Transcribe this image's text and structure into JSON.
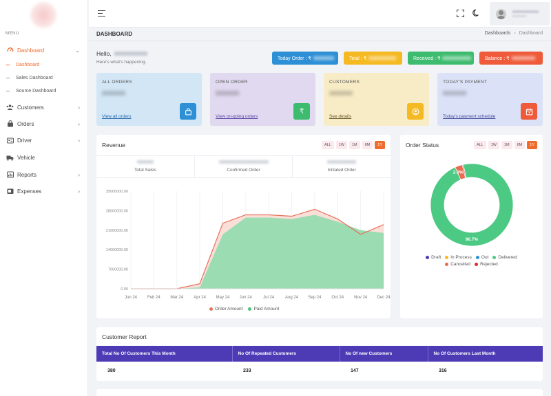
{
  "sidebar": {
    "menu_label": "MENU",
    "items": [
      {
        "label": "Dashboard",
        "icon": "gauge-icon"
      },
      {
        "label": "Customers",
        "icon": "users-icon"
      },
      {
        "label": "Orders",
        "icon": "bag-icon"
      },
      {
        "label": "Driver",
        "icon": "id-card-icon"
      },
      {
        "label": "Vehicle",
        "icon": "truck-icon"
      },
      {
        "label": "Reports",
        "icon": "reports-icon"
      },
      {
        "label": "Expenses",
        "icon": "wallet-icon"
      }
    ],
    "sub_items": [
      "Dashboard",
      "Sales Dashboard",
      "Source Dashboard"
    ]
  },
  "header": {
    "page_title": "DASHBOARD",
    "breadcrumb": [
      "Dashboards",
      "Dashboard"
    ]
  },
  "greeting": {
    "hello": "Hello,",
    "sub": "Here's what's happening."
  },
  "pills": [
    {
      "label": "Today Order : ₹",
      "color": "#2d8fd5"
    },
    {
      "label": "Total : ₹",
      "color": "#f5b922"
    },
    {
      "label": "Received : ₹",
      "color": "#3dbb6e"
    },
    {
      "label": "Balance : ₹",
      "color": "#ef5a3a"
    }
  ],
  "stats": [
    {
      "label": "ALL ORDERS",
      "link": "View all orders",
      "bg": "#d3e6f5",
      "icon_bg": "#2d8fd5",
      "link_color": "#2a6db0",
      "icon": "bag-icon"
    },
    {
      "label": "OPEN ORDER",
      "link": "View on-going orders",
      "bg": "#e0d9ef",
      "icon_bg": "#3dbb6e",
      "link_color": "#5a4aa8",
      "icon": "rupee-icon"
    },
    {
      "label": "CUSTOMERS",
      "link": "See details",
      "bg": "#f8ecc7",
      "icon_bg": "#f5b922",
      "link_color": "#6a5a2a",
      "icon": "user-circle-icon"
    },
    {
      "label": "TODAY'S PAYMENT",
      "link": "Today's payment schedule",
      "bg": "#dbe1f6",
      "icon_bg": "#ef5a3a",
      "link_color": "#4a4fa0",
      "icon": "calendar-icon"
    }
  ],
  "revenue": {
    "title": "Revenue",
    "filters": [
      "ALL",
      "1W",
      "1M",
      "6M",
      "1Y"
    ],
    "active_filter": "1Y",
    "summary": [
      "Total Sales",
      "Confirmed Order",
      "Initiated Order"
    ],
    "legend": [
      {
        "name": "Order Amount",
        "color": "#e4715a"
      },
      {
        "name": "Paid Amount",
        "color": "#4cc07b"
      }
    ]
  },
  "chart_data": {
    "type": "area",
    "x": [
      "Jun 24",
      "Feb 24",
      "Mar 24",
      "Apr 24",
      "May 24",
      "Jun 24",
      "Jul 24",
      "Aug 24",
      "Sep 24",
      "Oct 24",
      "Nov 24",
      "Dec 24"
    ],
    "y_ticks": [
      "35000000.00",
      "28000000.00",
      "21000000.00",
      "14000000.00",
      "7000000.00",
      "0.00"
    ],
    "ylim": [
      0,
      35000000
    ],
    "series": [
      {
        "name": "Order Amount",
        "values": [
          0,
          0,
          0,
          1800000,
          23500000,
          26500000,
          26500000,
          26000000,
          28500000,
          25000000,
          19500000,
          23000000
        ]
      },
      {
        "name": "Paid Amount",
        "values": [
          0,
          0,
          0,
          500000,
          19500000,
          25500000,
          25500000,
          25000000,
          26500000,
          24000000,
          21000000,
          20000000
        ]
      }
    ]
  },
  "order_status": {
    "title": "Order Status",
    "filters": [
      "ALL",
      "1W",
      "1M",
      "6M",
      "1Y"
    ],
    "active_filter": "1Y",
    "donut": {
      "slices": [
        {
          "name": "Delivered",
          "value": 96.7,
          "color": "#4cc983",
          "label": "96.7%"
        },
        {
          "name": "Cancelled",
          "value": 2.9,
          "color": "#e86b52",
          "label": "2.9%"
        },
        {
          "name": "Rejected",
          "value": 0.4,
          "color": "#d93030",
          "label": ""
        }
      ]
    },
    "legend": [
      {
        "name": "Draft",
        "color": "#4c3bb5"
      },
      {
        "name": "In Process",
        "color": "#f5b922"
      },
      {
        "name": "Out",
        "color": "#2d8fd5"
      },
      {
        "name": "Delivered",
        "color": "#4cc983"
      },
      {
        "name": "Cancelled",
        "color": "#e86b52"
      },
      {
        "name": "Rejected",
        "color": "#d93030"
      }
    ]
  },
  "customer_report": {
    "title": "Customer Report",
    "headers": [
      "Total No Of Customers This Month",
      "No Of Repeated Customers",
      "No Of new Customers",
      "No Of Customers Last Month"
    ],
    "row": [
      "380",
      "233",
      "147",
      "316"
    ]
  }
}
